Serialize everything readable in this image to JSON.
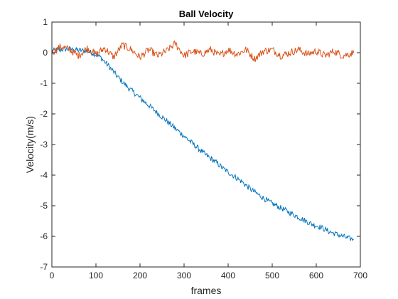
{
  "chart_data": {
    "type": "line",
    "title": "Ball Velocity",
    "xlabel": "frames",
    "ylabel": "Velocity(m/s)",
    "xlim": [
      0,
      700
    ],
    "ylim": [
      -7,
      1
    ],
    "xticks": [
      0,
      100,
      200,
      300,
      400,
      500,
      600,
      700
    ],
    "yticks": [
      -7,
      -6,
      -5,
      -4,
      -3,
      -2,
      -1,
      0,
      1
    ],
    "grid": false,
    "legend": "none",
    "series": [
      {
        "color": "#0072BD",
        "x": [
          0,
          20,
          40,
          60,
          80,
          100,
          110,
          130,
          150,
          170,
          190,
          210,
          230,
          250,
          270,
          290,
          310,
          330,
          350,
          370,
          390,
          410,
          430,
          450,
          470,
          490,
          510,
          530,
          550,
          570,
          590,
          610,
          630,
          650,
          670,
          685
        ],
        "y": [
          0.05,
          0.1,
          0.12,
          0.08,
          0.05,
          -0.05,
          -0.15,
          -0.45,
          -0.8,
          -1.1,
          -1.35,
          -1.6,
          -1.85,
          -2.1,
          -2.35,
          -2.6,
          -2.85,
          -3.1,
          -3.35,
          -3.55,
          -3.8,
          -4.0,
          -4.2,
          -4.45,
          -4.65,
          -4.85,
          -5.0,
          -5.15,
          -5.3,
          -5.45,
          -5.6,
          -5.7,
          -5.85,
          -5.95,
          -6.05,
          -6.1
        ]
      },
      {
        "color": "#D95319",
        "x": [
          0,
          20,
          40,
          60,
          80,
          100,
          120,
          140,
          160,
          180,
          200,
          220,
          240,
          260,
          280,
          300,
          320,
          340,
          360,
          380,
          400,
          420,
          440,
          460,
          480,
          500,
          520,
          540,
          560,
          580,
          600,
          620,
          640,
          660,
          685
        ],
        "y": [
          0.0,
          0.2,
          0.1,
          -0.1,
          0.15,
          -0.05,
          0.15,
          -0.15,
          0.25,
          0.1,
          -0.15,
          0.1,
          -0.1,
          0.05,
          0.3,
          -0.1,
          0.05,
          -0.05,
          0.1,
          -0.1,
          0.1,
          -0.05,
          0.1,
          -0.2,
          0.05,
          0.1,
          -0.1,
          0.0,
          0.1,
          -0.05,
          0.05,
          -0.1,
          0.05,
          -0.1,
          0.0
        ]
      }
    ]
  }
}
